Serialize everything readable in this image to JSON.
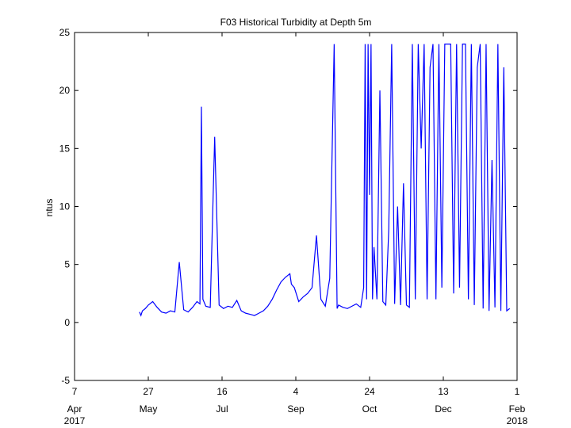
{
  "chart_data": {
    "type": "line",
    "title": "F03 Historical Turbidity at Depth 5m",
    "ylabel": "ntus",
    "xlabel": "",
    "ylim": [
      -5,
      25
    ],
    "xlim": [
      "2017-04-07",
      "2018-02-01"
    ],
    "grid": false,
    "series_color": "#0000ff",
    "y_ticks": [
      {
        "value": -5,
        "label": "-5"
      },
      {
        "value": 0,
        "label": "0"
      },
      {
        "value": 5,
        "label": "5"
      },
      {
        "value": 10,
        "label": "10"
      },
      {
        "value": 15,
        "label": "15"
      },
      {
        "value": 20,
        "label": "20"
      },
      {
        "value": 25,
        "label": "25"
      }
    ],
    "x_ticks": [
      {
        "date": "2017-04-07",
        "day": "7",
        "month": "Apr",
        "year": "2017"
      },
      {
        "date": "2017-05-27",
        "day": "27",
        "month": "May",
        "year": ""
      },
      {
        "date": "2017-07-16",
        "day": "16",
        "month": "Jul",
        "year": ""
      },
      {
        "date": "2017-09-04",
        "day": "4",
        "month": "Sep",
        "year": ""
      },
      {
        "date": "2017-10-24",
        "day": "24",
        "month": "Oct",
        "year": ""
      },
      {
        "date": "2017-12-13",
        "day": "13",
        "month": "Dec",
        "year": ""
      },
      {
        "date": "2018-02-01",
        "day": "1",
        "month": "Feb",
        "year": "2018"
      }
    ],
    "series": [
      {
        "x": [
          "2017-05-21",
          "2017-05-22",
          "2017-05-23",
          "2017-05-25",
          "2017-05-27",
          "2017-05-30",
          "2017-06-02",
          "2017-06-05",
          "2017-06-08",
          "2017-06-11",
          "2017-06-14",
          "2017-06-17",
          "2017-06-20",
          "2017-06-23",
          "2017-06-26",
          "2017-06-29",
          "2017-07-01",
          "2017-07-02",
          "2017-07-03",
          "2017-07-05",
          "2017-07-08",
          "2017-07-11",
          "2017-07-14",
          "2017-07-17",
          "2017-07-20",
          "2017-07-23",
          "2017-07-26",
          "2017-07-29",
          "2017-08-01",
          "2017-08-04",
          "2017-08-07",
          "2017-08-10",
          "2017-08-13",
          "2017-08-16",
          "2017-08-19",
          "2017-08-22",
          "2017-08-25",
          "2017-08-28",
          "2017-08-31",
          "2017-09-01",
          "2017-09-03",
          "2017-09-06",
          "2017-09-09",
          "2017-09-12",
          "2017-09-15",
          "2017-09-18",
          "2017-09-21",
          "2017-09-24",
          "2017-09-27",
          "2017-09-30",
          "2017-10-02",
          "2017-10-03",
          "2017-10-06",
          "2017-10-09",
          "2017-10-12",
          "2017-10-15",
          "2017-10-18",
          "2017-10-20",
          "2017-10-21",
          "2017-10-22",
          "2017-10-23",
          "2017-10-24",
          "2017-10-25",
          "2017-10-26",
          "2017-10-27",
          "2017-10-29",
          "2017-10-31",
          "2017-11-02",
          "2017-11-04",
          "2017-11-06",
          "2017-11-08",
          "2017-11-10",
          "2017-11-12",
          "2017-11-14",
          "2017-11-16",
          "2017-11-18",
          "2017-11-20",
          "2017-11-22",
          "2017-11-24",
          "2017-11-26",
          "2017-11-28",
          "2017-11-30",
          "2017-12-02",
          "2017-12-04",
          "2017-12-06",
          "2017-12-08",
          "2017-12-10",
          "2017-12-12",
          "2017-12-14",
          "2017-12-16",
          "2017-12-18",
          "2017-12-20",
          "2017-12-22",
          "2017-12-24",
          "2017-12-26",
          "2017-12-28",
          "2017-12-30",
          "2018-01-01",
          "2018-01-03",
          "2018-01-05",
          "2018-01-07",
          "2018-01-09",
          "2018-01-11",
          "2018-01-13",
          "2018-01-15",
          "2018-01-17",
          "2018-01-19",
          "2018-01-21",
          "2018-01-23",
          "2018-01-25",
          "2018-01-27"
        ],
        "y": [
          0.9,
          0.6,
          1.0,
          1.2,
          1.5,
          1.8,
          1.3,
          0.9,
          0.8,
          1.0,
          0.9,
          5.2,
          1.1,
          0.9,
          1.3,
          1.8,
          1.6,
          18.6,
          2.0,
          1.4,
          1.3,
          16.0,
          1.5,
          1.2,
          1.4,
          1.3,
          1.9,
          1.0,
          0.8,
          0.7,
          0.6,
          0.8,
          1.0,
          1.4,
          2.0,
          2.8,
          3.5,
          3.9,
          4.2,
          3.3,
          3.0,
          1.8,
          2.2,
          2.5,
          3.0,
          7.5,
          2.0,
          1.4,
          3.8,
          24.0,
          1.2,
          1.5,
          1.3,
          1.2,
          1.4,
          1.6,
          1.3,
          3.0,
          24.0,
          2.0,
          24.0,
          11.0,
          24.0,
          2.0,
          6.5,
          2.0,
          20.0,
          1.8,
          1.5,
          8.0,
          24.0,
          1.6,
          10.0,
          1.5,
          12.0,
          1.5,
          1.3,
          24.0,
          2.0,
          24.0,
          15.0,
          24.0,
          2.0,
          22.0,
          24.0,
          2.0,
          24.0,
          3.0,
          24.0,
          24.0,
          24.0,
          2.5,
          24.0,
          3.0,
          24.0,
          24.0,
          2.0,
          24.0,
          1.5,
          22.0,
          24.0,
          1.2,
          24.0,
          1.0,
          14.0,
          1.3,
          24.0,
          1.0,
          22.0,
          1.0,
          1.2
        ]
      }
    ]
  }
}
